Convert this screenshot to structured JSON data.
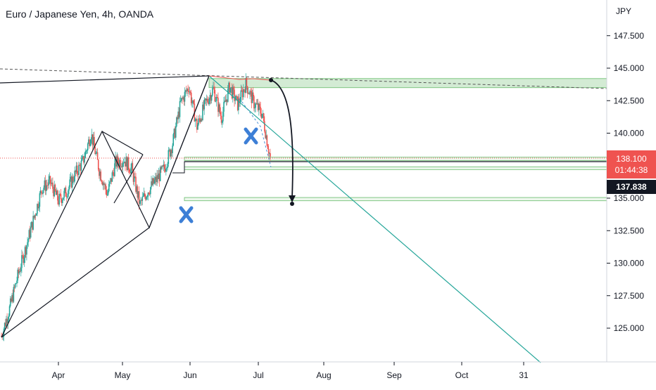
{
  "header": {
    "title": "Euro / Japanese Yen, 4h, OANDA"
  },
  "axis": {
    "currency": "JPY",
    "price_ticks": [
      "147.500",
      "145.000",
      "142.500",
      "140.000",
      "137.500",
      "135.000",
      "132.500",
      "130.000",
      "127.500",
      "125.000"
    ],
    "time_ticks": [
      "Apr",
      "May",
      "Jun",
      "Jul",
      "Aug",
      "Sep",
      "Oct",
      "31"
    ]
  },
  "price_labels": {
    "last_price": "138.100",
    "countdown": "01:44:38",
    "marker_price": "137.838"
  },
  "colors": {
    "up": "#26a69a",
    "down": "#ef5350",
    "zone_fill": "#c8e6c9",
    "zone_border": "#66bb6a",
    "trendline_green": "#26a69a",
    "marker_blue": "#3d7fd6"
  },
  "chart_data": {
    "type": "candlestick",
    "title": "Euro / Japanese Yen, 4h, OANDA",
    "ylabel": "JPY",
    "ylim": [
      122.5,
      149.0
    ],
    "x_ticks": [
      "Apr",
      "May",
      "Jun",
      "Jul",
      "Aug",
      "Sep",
      "Oct",
      "31"
    ],
    "price_path": [
      [
        "Mar 8",
        124.4
      ],
      [
        "Mar 12",
        126.5
      ],
      [
        "Mar 16",
        129.0
      ],
      [
        "Mar 20",
        131.2
      ],
      [
        "Mar 24",
        133.5
      ],
      [
        "Mar 28",
        135.8
      ],
      [
        "Apr 1",
        136.2
      ],
      [
        "Apr 5",
        134.8
      ],
      [
        "Apr 9",
        135.5
      ],
      [
        "Apr 13",
        136.8
      ],
      [
        "Apr 17",
        137.8
      ],
      [
        "Apr 21",
        140.0
      ],
      [
        "Apr 25",
        137.2
      ],
      [
        "Apr 28",
        135.3
      ],
      [
        "May 2",
        137.7
      ],
      [
        "May 6",
        138.0
      ],
      [
        "May 10",
        137.2
      ],
      [
        "May 13",
        134.5
      ],
      [
        "May 17",
        135.6
      ],
      [
        "May 20",
        136.4
      ],
      [
        "May 24",
        137.3
      ],
      [
        "May 28",
        139.2
      ],
      [
        "Jun 1",
        142.3
      ],
      [
        "Jun 4",
        143.6
      ],
      [
        "Jun 8",
        140.5
      ],
      [
        "Jun 11",
        142.2
      ],
      [
        "Jun 14",
        143.4
      ],
      [
        "Jun 17",
        141.2
      ],
      [
        "Jun 20",
        143.6
      ],
      [
        "Jun 23",
        142.2
      ],
      [
        "Jun 26",
        143.8
      ],
      [
        "Jun 29",
        142.3
      ],
      [
        "Jul 2",
        141.5
      ],
      [
        "Jul 5",
        138.1
      ]
    ],
    "last_price": 138.1,
    "marker_price": 137.838,
    "zones": [
      [
        144.2,
        143.5
      ],
      [
        138.15,
        137.9
      ],
      [
        137.4,
        137.2
      ],
      [
        135.05,
        134.8
      ]
    ]
  }
}
